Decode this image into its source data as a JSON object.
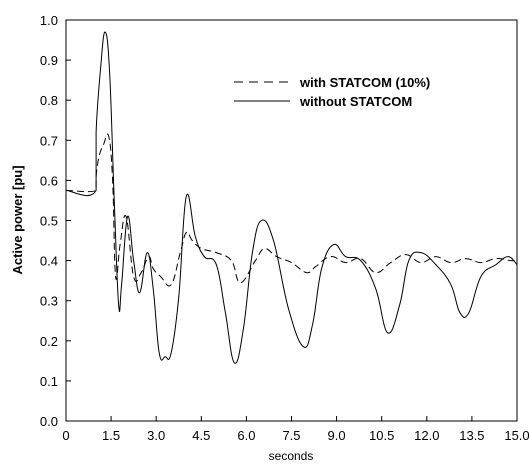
{
  "chart_data": {
    "type": "line",
    "xlabel": "seconds",
    "ylabel": "Active power [pu]",
    "xlim": [
      0,
      15
    ],
    "ylim": [
      0,
      1
    ],
    "xticks": [
      0,
      1.5,
      3,
      4.5,
      6,
      7.5,
      9,
      10.5,
      12,
      13.5,
      15
    ],
    "xtick_labels": [
      "0",
      "1.5",
      "3.0",
      "4.5",
      "6.0",
      "7.5",
      "9.0",
      "10.5",
      "12.0",
      "13.5",
      "15.0"
    ],
    "yticks": [
      0,
      0.1,
      0.2,
      0.3,
      0.4,
      0.5,
      0.6,
      0.7,
      0.8,
      0.9,
      1.0
    ],
    "ytick_labels": [
      "0.0",
      "0.1",
      "0.2",
      "0.3",
      "0.4",
      "0.5",
      "0.6",
      "0.7",
      "0.8",
      "0.9",
      "1.0"
    ],
    "grid": false,
    "legend_position": "top-right",
    "series": [
      {
        "name": "with STATCOM (10%)",
        "style": "dashed",
        "color": "#000000",
        "x": [
          0,
          1.0,
          1.0,
          1.1,
          1.25,
          1.42,
          1.55,
          1.65,
          1.8,
          2.0,
          2.25,
          2.5,
          2.75,
          2.9,
          3.15,
          3.5,
          3.8,
          4.0,
          4.2,
          4.5,
          5.0,
          5.5,
          5.8,
          6.3,
          6.6,
          7.0,
          7.5,
          8.0,
          8.3,
          8.8,
          9.3,
          9.8,
          10.3,
          10.8,
          11.3,
          11.8,
          12.3,
          12.8,
          13.3,
          13.8,
          14.3,
          14.8,
          15.0
        ],
        "y": [
          0.575,
          0.575,
          0.61,
          0.66,
          0.69,
          0.71,
          0.6,
          0.36,
          0.44,
          0.51,
          0.36,
          0.37,
          0.41,
          0.38,
          0.36,
          0.34,
          0.42,
          0.47,
          0.45,
          0.43,
          0.42,
          0.4,
          0.345,
          0.4,
          0.43,
          0.41,
          0.395,
          0.37,
          0.385,
          0.41,
          0.395,
          0.405,
          0.37,
          0.395,
          0.415,
          0.395,
          0.41,
          0.395,
          0.405,
          0.395,
          0.405,
          0.4,
          0.4
        ]
      },
      {
        "name": "without STATCOM",
        "style": "solid",
        "color": "#000000",
        "x": [
          0,
          1.0,
          1.0,
          1.15,
          1.3,
          1.45,
          1.6,
          1.75,
          1.85,
          2.05,
          2.25,
          2.45,
          2.7,
          2.9,
          3.1,
          3.3,
          3.5,
          3.75,
          4.0,
          4.3,
          4.6,
          5.0,
          5.3,
          5.6,
          5.9,
          6.2,
          6.5,
          6.9,
          7.4,
          7.9,
          8.2,
          8.5,
          8.9,
          9.3,
          9.8,
          10.3,
          10.7,
          11.1,
          11.4,
          11.8,
          12.3,
          12.8,
          13.1,
          13.4,
          13.8,
          14.3,
          14.7,
          15.0
        ],
        "y": [
          0.575,
          0.575,
          0.72,
          0.88,
          0.97,
          0.87,
          0.56,
          0.29,
          0.34,
          0.51,
          0.4,
          0.32,
          0.42,
          0.33,
          0.17,
          0.16,
          0.17,
          0.31,
          0.56,
          0.46,
          0.41,
          0.39,
          0.27,
          0.145,
          0.23,
          0.42,
          0.5,
          0.45,
          0.28,
          0.185,
          0.24,
          0.38,
          0.44,
          0.41,
          0.4,
          0.33,
          0.22,
          0.29,
          0.4,
          0.42,
          0.39,
          0.34,
          0.27,
          0.27,
          0.36,
          0.39,
          0.41,
          0.39
        ]
      }
    ]
  }
}
